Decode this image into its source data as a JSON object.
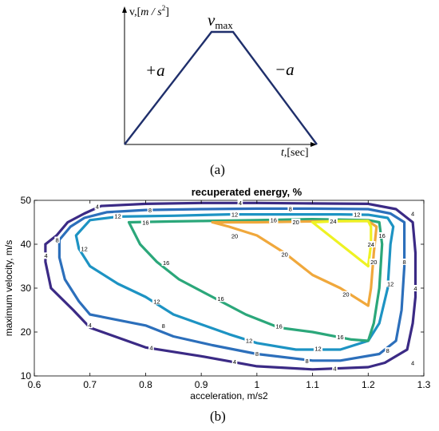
{
  "panel_a": {
    "label": "(a)",
    "y_axis_label_prefix": "v,[",
    "y_axis_label_unit": "m / s",
    "y_axis_label_exp": "2",
    "y_axis_label_suffix": "]",
    "x_axis_label_prefix": "t",
    "x_axis_label_suffix": ",[sec]",
    "vmax_label": "v",
    "vmax_sub": "max",
    "accel_label": "+a",
    "decel_label": "−a",
    "line_color": "#1f2f6b"
  },
  "panel_b": {
    "label": "(b)"
  },
  "chart_data": {
    "type": "contour",
    "title": "recuperated energy, %",
    "xlabel": "acceleration, m/s2",
    "ylabel": "maximum velocity, m/s",
    "xlim": [
      0.6,
      1.3
    ],
    "ylim": [
      10,
      50
    ],
    "xticks": [
      "0.6",
      "0.7",
      "0.8",
      "0.9",
      "1",
      "1.1",
      "1.2",
      "1.3"
    ],
    "yticks": [
      "10",
      "20",
      "30",
      "40",
      "50"
    ],
    "levels": [
      {
        "level": 4,
        "color": "#3b2a85",
        "points": [
          [
            0.62,
            40
          ],
          [
            0.64,
            42
          ],
          [
            0.66,
            45
          ],
          [
            0.69,
            47
          ],
          [
            0.72,
            48.7
          ],
          [
            0.8,
            49.2
          ],
          [
            0.9,
            49.4
          ],
          [
            1.0,
            49.4
          ],
          [
            1.1,
            49.3
          ],
          [
            1.2,
            49.2
          ],
          [
            1.25,
            48
          ],
          [
            1.28,
            45
          ],
          [
            1.285,
            38
          ],
          [
            1.285,
            28
          ],
          [
            1.28,
            22
          ],
          [
            1.27,
            16
          ],
          [
            1.23,
            13
          ],
          [
            1.2,
            12
          ],
          [
            1.1,
            11.5
          ],
          [
            1.0,
            12.2
          ],
          [
            0.9,
            14.5
          ],
          [
            0.8,
            16.5
          ],
          [
            0.7,
            21
          ],
          [
            0.67,
            25
          ],
          [
            0.63,
            30
          ],
          [
            0.62,
            36
          ],
          [
            0.62,
            40
          ]
        ],
        "labels": [
          [
            0.713,
            48.6
          ],
          [
            0.97,
            49.4
          ],
          [
            1.28,
            47
          ],
          [
            1.285,
            30
          ],
          [
            1.28,
            13
          ],
          [
            1.14,
            11.7
          ],
          [
            0.96,
            13.2
          ],
          [
            0.81,
            16.4
          ],
          [
            0.7,
            21.6
          ],
          [
            0.621,
            37.4
          ]
        ]
      },
      {
        "level": 8,
        "color": "#2c6fbb",
        "points": [
          [
            0.645,
            41
          ],
          [
            0.665,
            44
          ],
          [
            0.69,
            46
          ],
          [
            0.73,
            47.3
          ],
          [
            0.8,
            47.8
          ],
          [
            0.9,
            48
          ],
          [
            1.0,
            48.1
          ],
          [
            1.1,
            48.1
          ],
          [
            1.2,
            48
          ],
          [
            1.24,
            47
          ],
          [
            1.265,
            45
          ],
          [
            1.265,
            35
          ],
          [
            1.26,
            25
          ],
          [
            1.25,
            18
          ],
          [
            1.22,
            15
          ],
          [
            1.15,
            13.5
          ],
          [
            1.1,
            13.5
          ],
          [
            1.0,
            15
          ],
          [
            0.92,
            17
          ],
          [
            0.85,
            19
          ],
          [
            0.8,
            21.5
          ],
          [
            0.7,
            24
          ],
          [
            0.68,
            27
          ],
          [
            0.655,
            32
          ],
          [
            0.645,
            37
          ],
          [
            0.645,
            41
          ]
        ],
        "labels": [
          [
            0.808,
            47.8
          ],
          [
            1.06,
            48.1
          ],
          [
            1.265,
            36
          ],
          [
            1.235,
            15.8
          ],
          [
            1.09,
            13.4
          ],
          [
            1.0,
            15.1
          ],
          [
            0.832,
            21.4
          ],
          [
            0.641,
            41
          ]
        ]
      },
      {
        "level": 12,
        "color": "#1d93c3",
        "points": [
          [
            0.7,
            45.5
          ],
          [
            0.75,
            46.3
          ],
          [
            0.85,
            46.5
          ],
          [
            0.95,
            46.8
          ],
          [
            1.05,
            46.8
          ],
          [
            1.15,
            46.8
          ],
          [
            1.2,
            46.7
          ],
          [
            1.235,
            46
          ],
          [
            1.245,
            44
          ],
          [
            1.24,
            40
          ],
          [
            1.235,
            30
          ],
          [
            1.22,
            22
          ],
          [
            1.2,
            18
          ],
          [
            1.15,
            16
          ],
          [
            1.07,
            16
          ],
          [
            1.0,
            17.5
          ],
          [
            0.95,
            19.5
          ],
          [
            0.85,
            24
          ],
          [
            0.8,
            28
          ],
          [
            0.75,
            31
          ],
          [
            0.7,
            35
          ],
          [
            0.68,
            39
          ],
          [
            0.675,
            42
          ],
          [
            0.7,
            45.5
          ]
        ],
        "labels": [
          [
            0.75,
            46.4
          ],
          [
            0.96,
            46.8
          ],
          [
            1.18,
            46.8
          ],
          [
            1.24,
            31
          ],
          [
            1.11,
            16.2
          ],
          [
            0.986,
            18.1
          ],
          [
            0.82,
            27
          ],
          [
            0.69,
            39
          ]
        ]
      },
      {
        "level": 16,
        "color": "#2ba77a",
        "points": [
          [
            0.77,
            45
          ],
          [
            0.85,
            45.2
          ],
          [
            0.9,
            45.3
          ],
          [
            1.0,
            45.5
          ],
          [
            1.1,
            45.7
          ],
          [
            1.2,
            45.5
          ],
          [
            1.22,
            45
          ],
          [
            1.225,
            40
          ],
          [
            1.22,
            30
          ],
          [
            1.21,
            22
          ],
          [
            1.2,
            18
          ],
          [
            1.17,
            18.3
          ],
          [
            1.1,
            20
          ],
          [
            1.04,
            21
          ],
          [
            0.98,
            24
          ],
          [
            0.92,
            28
          ],
          [
            0.86,
            32
          ],
          [
            0.82,
            36
          ],
          [
            0.79,
            40
          ],
          [
            0.77,
            45
          ]
        ],
        "labels": [
          [
            0.8,
            45
          ],
          [
            1.03,
            45.5
          ],
          [
            1.225,
            42
          ],
          [
            1.15,
            18.9
          ],
          [
            1.04,
            21.3
          ],
          [
            0.935,
            27.6
          ],
          [
            0.837,
            35.8
          ]
        ]
      },
      {
        "level": 20,
        "color": "#f0a83c",
        "points": [
          [
            0.92,
            45
          ],
          [
            0.95,
            44
          ],
          [
            1.0,
            42
          ],
          [
            1.05,
            38
          ],
          [
            1.1,
            33
          ],
          [
            1.15,
            30
          ],
          [
            1.2,
            26
          ],
          [
            1.205,
            30
          ],
          [
            1.21,
            38
          ],
          [
            1.215,
            44
          ],
          [
            1.2,
            45.3
          ],
          [
            1.1,
            45.2
          ],
          [
            1.0,
            45
          ],
          [
            0.92,
            45
          ]
        ],
        "labels": [
          [
            1.07,
            45.1
          ],
          [
            1.21,
            36
          ],
          [
            1.16,
            28.6
          ],
          [
            1.05,
            37.7
          ],
          [
            0.96,
            41.9
          ]
        ]
      },
      {
        "level": 24,
        "color": "#eef223",
        "points": [
          [
            1.1,
            45
          ],
          [
            1.12,
            43
          ],
          [
            1.15,
            40
          ],
          [
            1.18,
            37
          ],
          [
            1.2,
            35
          ],
          [
            1.205,
            40
          ],
          [
            1.205,
            44
          ],
          [
            1.2,
            45.3
          ],
          [
            1.15,
            45.3
          ],
          [
            1.1,
            45
          ]
        ],
        "labels": [
          [
            1.137,
            45.2
          ],
          [
            1.205,
            40
          ]
        ]
      }
    ]
  }
}
